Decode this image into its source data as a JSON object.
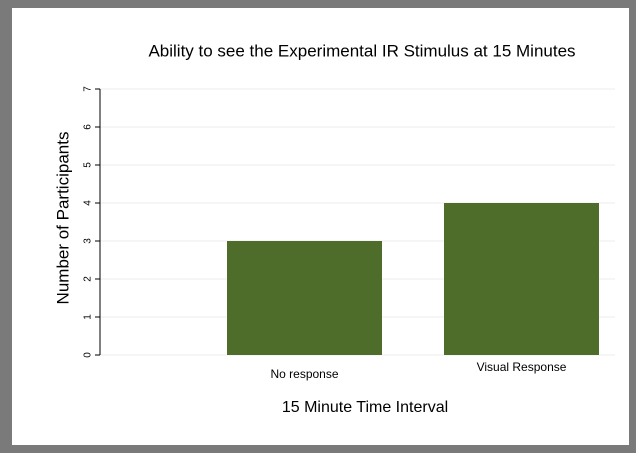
{
  "chart_data": {
    "type": "bar",
    "title": "Ability to see the Experimental IR Stimulus at 15 Minutes",
    "x_label": "15 Minute Time Interval",
    "y_label": "Number of Participants",
    "categories": [
      "No response",
      "Visual Response"
    ],
    "values": [
      3,
      4
    ],
    "color": "#4e6d2a",
    "ylim": [
      0,
      7
    ],
    "yticks": [
      0,
      1,
      2,
      3,
      4,
      5,
      6,
      7
    ],
    "grid": true
  }
}
